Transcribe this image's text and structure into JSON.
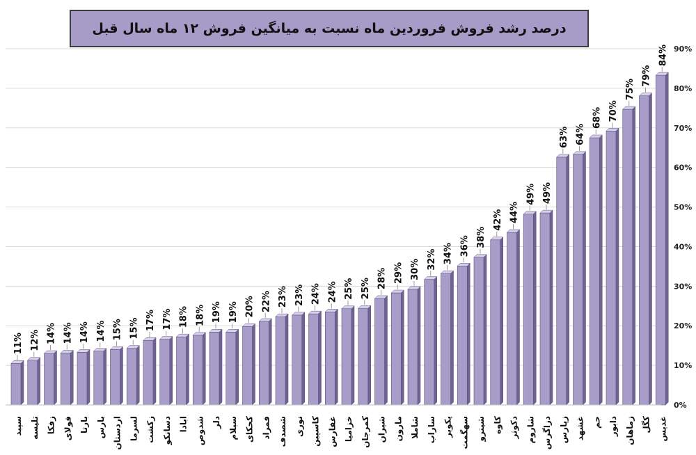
{
  "chart_data": {
    "type": "bar",
    "title": "درصد رشد  فروش فروردین ماه نسبت به میانگین فروش ۱۲ ماه سال قبل",
    "xlabel": "",
    "ylabel": "",
    "ylim": [
      0,
      90
    ],
    "yticks": [
      "0%",
      "10%",
      "20%",
      "30%",
      "40%",
      "50%",
      "60%",
      "70%",
      "80%",
      "90%"
    ],
    "grid": true,
    "legend": "none",
    "categories": [
      "سپید",
      "تلیسه",
      "زفکا",
      "فولای",
      "بارتا",
      "بارس",
      "اردستان",
      "لسرما",
      "زکشت",
      "دسانکو",
      "ابادا",
      "شدوص",
      "دلر",
      "سیلام",
      "کحکای",
      "فمراد",
      "شصدف",
      "نوری",
      "کاسپین",
      "غفارس",
      "خزامیا",
      "کمرجان",
      "شیران",
      "مارون",
      "شاملا",
      "ساراب",
      "پکویر",
      "سهگمت",
      "شیترو",
      "کاوه",
      "دکوثر",
      "شاروم",
      "دزاگرس",
      "زپارس",
      "غشهد",
      "جم",
      "دابور",
      "زماهان",
      "کگل",
      "غدیس"
    ],
    "values": [
      11,
      12,
      14,
      14,
      14,
      14,
      15,
      15,
      17,
      17,
      18,
      18,
      19,
      19,
      20,
      22,
      23,
      23,
      24,
      24,
      25,
      25,
      28,
      29,
      30,
      32,
      34,
      36,
      38,
      42,
      44,
      49,
      49,
      63,
      64,
      68,
      70,
      75,
      79,
      84
    ],
    "data_labels": [
      "11%",
      "12%",
      "14%",
      "14%",
      "14%",
      "14%",
      "15%",
      "15%",
      "17%",
      "17%",
      "18%",
      "18%",
      "19%",
      "19%",
      "20%",
      "22%",
      "23%",
      "23%",
      "24%",
      "24%",
      "25%",
      "25%",
      "28%",
      "29%",
      "30%",
      "32%",
      "34%",
      "36%",
      "38%",
      "42%",
      "44%",
      "49%",
      "49%",
      "63%",
      "64%",
      "68%",
      "70%",
      "75%",
      "79%",
      "84%"
    ],
    "bar_heights": [
      10.5,
      11.3,
      13.0,
      13.1,
      13.3,
      13.6,
      14.0,
      14.3,
      16.3,
      16.6,
      17.2,
      17.6,
      18.4,
      18.4,
      19.8,
      21.1,
      22.3,
      22.7,
      23.0,
      23.5,
      24.3,
      24.4,
      26.9,
      28.3,
      29.2,
      31.7,
      33.2,
      35.1,
      37.3,
      41.7,
      43.6,
      48.2,
      48.5,
      62.6,
      63.3,
      67.5,
      69.2,
      74.7,
      78.1,
      83.3
    ],
    "colors": {
      "bar_front": "#a89cc8",
      "bar_side": "#6f6394",
      "bar_top": "#d6d0ea",
      "title_bg": "#a79bc8"
    }
  }
}
